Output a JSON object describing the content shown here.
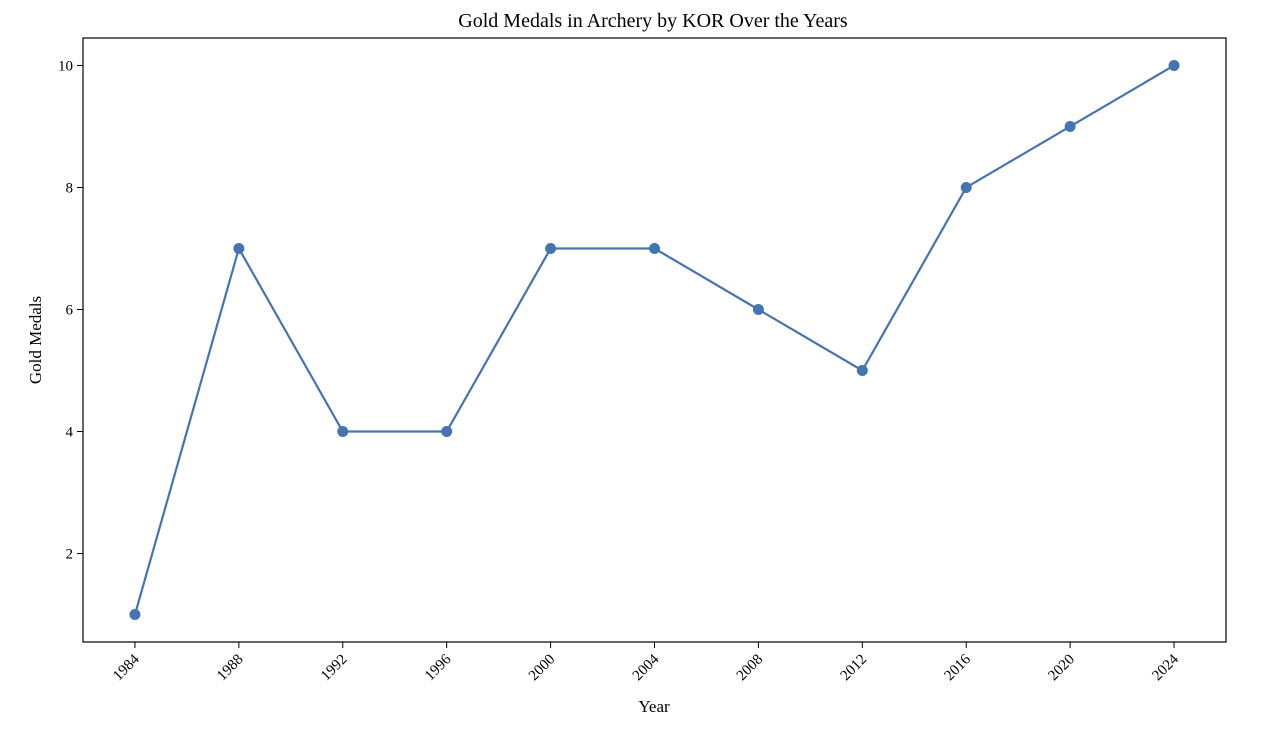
{
  "chart_data": {
    "type": "line",
    "title": "Gold Medals in Archery by KOR Over the Years",
    "xlabel": "Year",
    "ylabel": "Gold Medals",
    "x": [
      1984,
      1988,
      1992,
      1996,
      2000,
      2004,
      2008,
      2012,
      2016,
      2020,
      2024
    ],
    "x_tick_labels": [
      "1984",
      "1988",
      "1992",
      "1996",
      "2000",
      "2004",
      "2008",
      "2012",
      "2016",
      "2020",
      "2024"
    ],
    "series": [
      {
        "values": [
          1,
          7,
          4,
          4,
          7,
          7,
          6,
          5,
          8,
          9,
          10
        ],
        "color": "#4575b0",
        "marker": "circle"
      }
    ],
    "xlim": [
      1982,
      2026
    ],
    "ylim": [
      0.55,
      10.45
    ],
    "y_ticks": [
      2,
      4,
      6,
      8,
      10
    ],
    "y_tick_labels": [
      "2",
      "4",
      "6",
      "8",
      "10"
    ],
    "x_tick_rotation": -45,
    "grid": false,
    "legend": "none"
  }
}
